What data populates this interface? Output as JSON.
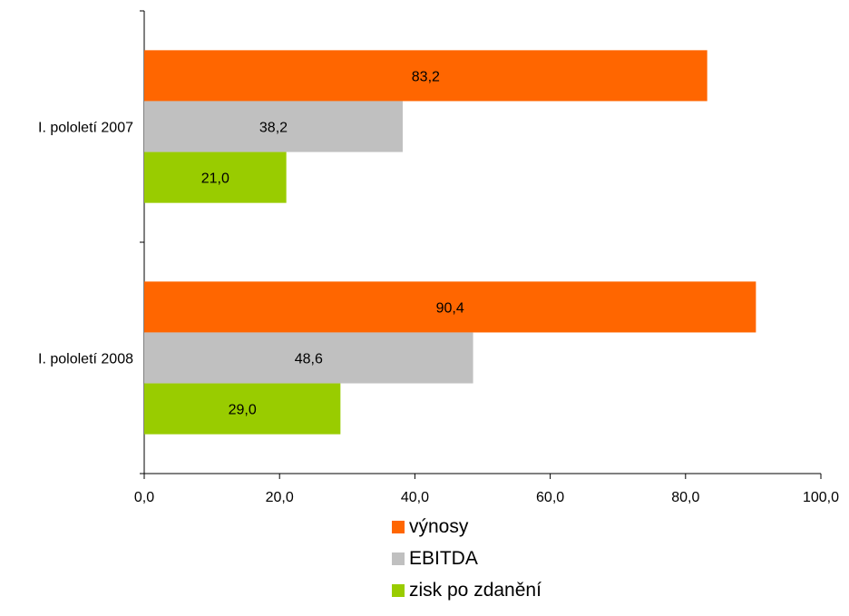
{
  "chart_data": {
    "type": "bar",
    "orientation": "horizontal",
    "title": "",
    "xlabel": "",
    "ylabel": "",
    "categories": [
      "I. pololetí 2007",
      "I. pololetí 2008"
    ],
    "series": [
      {
        "name": "výnosy",
        "color": "#FF6600",
        "values": [
          83.2,
          90.4
        ],
        "labels": [
          "83,2",
          "90,4"
        ]
      },
      {
        "name": "EBITDA",
        "color": "#C0C0C0",
        "values": [
          38.2,
          48.6
        ],
        "labels": [
          "38,2",
          "48,6"
        ]
      },
      {
        "name": "zisk po zdanění",
        "color": "#99CC00",
        "values": [
          21.0,
          29.0
        ],
        "labels": [
          "21,0",
          "29,0"
        ]
      }
    ],
    "xlim": [
      0,
      100
    ],
    "x_ticks": [
      0,
      20,
      40,
      60,
      80,
      100
    ],
    "x_tick_labels": [
      "0,0",
      "20,0",
      "40,0",
      "60,0",
      "80,0",
      "100,0"
    ],
    "grid": false,
    "legend_position": "bottom"
  }
}
